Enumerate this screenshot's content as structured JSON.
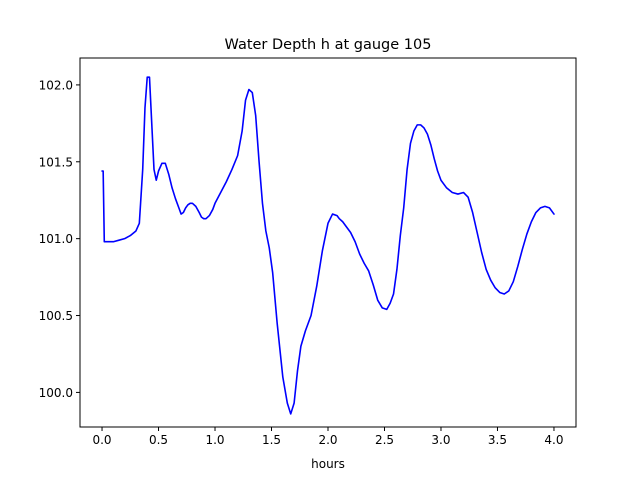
{
  "chart_data": {
    "type": "line",
    "title": "Water Depth h at gauge 105",
    "xlabel": "hours",
    "ylabel": "",
    "xlim": [
      -0.195,
      4.195
    ],
    "ylim": [
      99.775,
      102.175
    ],
    "xticks": [
      0.0,
      0.5,
      1.0,
      1.5,
      2.0,
      2.5,
      3.0,
      3.5,
      4.0
    ],
    "xtick_labels": [
      "0.0",
      "0.5",
      "1.0",
      "1.5",
      "2.0",
      "2.5",
      "3.0",
      "3.5",
      "4.0"
    ],
    "yticks": [
      100.0,
      100.5,
      101.0,
      101.5,
      102.0
    ],
    "ytick_labels": [
      "100.0",
      "100.5",
      "101.0",
      "101.5",
      "102.0"
    ],
    "grid": false,
    "legend": "none",
    "series": [
      {
        "color": "#0000ff",
        "x": [
          0.0,
          0.01,
          0.02,
          0.1,
          0.15,
          0.2,
          0.25,
          0.3,
          0.33,
          0.36,
          0.38,
          0.4,
          0.42,
          0.44,
          0.46,
          0.48,
          0.5,
          0.53,
          0.56,
          0.59,
          0.62,
          0.65,
          0.68,
          0.7,
          0.72,
          0.74,
          0.76,
          0.78,
          0.8,
          0.83,
          0.86,
          0.88,
          0.9,
          0.92,
          0.95,
          0.98,
          1.0,
          1.05,
          1.1,
          1.15,
          1.2,
          1.24,
          1.27,
          1.3,
          1.33,
          1.36,
          1.39,
          1.42,
          1.45,
          1.48,
          1.51,
          1.55,
          1.6,
          1.64,
          1.67,
          1.7,
          1.73,
          1.76,
          1.8,
          1.85,
          1.9,
          1.95,
          2.0,
          2.04,
          2.08,
          2.1,
          2.13,
          2.16,
          2.2,
          2.24,
          2.28,
          2.32,
          2.36,
          2.4,
          2.44,
          2.48,
          2.52,
          2.55,
          2.58,
          2.61,
          2.64,
          2.67,
          2.7,
          2.73,
          2.76,
          2.79,
          2.82,
          2.85,
          2.88,
          2.91,
          2.94,
          2.97,
          3.0,
          3.05,
          3.1,
          3.15,
          3.2,
          3.24,
          3.28,
          3.32,
          3.36,
          3.4,
          3.44,
          3.48,
          3.52,
          3.56,
          3.6,
          3.64,
          3.68,
          3.72,
          3.76,
          3.8,
          3.84,
          3.88,
          3.92,
          3.96,
          4.0
        ],
        "y": [
          101.44,
          101.44,
          100.98,
          100.98,
          100.99,
          101.0,
          101.02,
          101.05,
          101.1,
          101.45,
          101.85,
          102.05,
          102.05,
          101.75,
          101.45,
          101.38,
          101.44,
          101.49,
          101.49,
          101.42,
          101.33,
          101.26,
          101.2,
          101.16,
          101.17,
          101.2,
          101.22,
          101.23,
          101.23,
          101.21,
          101.17,
          101.14,
          101.13,
          101.13,
          101.15,
          101.19,
          101.23,
          101.3,
          101.37,
          101.45,
          101.54,
          101.7,
          101.9,
          101.97,
          101.95,
          101.8,
          101.5,
          101.23,
          101.05,
          100.94,
          100.78,
          100.45,
          100.1,
          99.93,
          99.86,
          99.93,
          100.14,
          100.3,
          100.4,
          100.5,
          100.69,
          100.92,
          101.1,
          101.16,
          101.15,
          101.13,
          101.11,
          101.08,
          101.04,
          100.98,
          100.9,
          100.84,
          100.79,
          100.7,
          100.6,
          100.55,
          100.54,
          100.58,
          100.64,
          100.8,
          101.02,
          101.2,
          101.45,
          101.62,
          101.7,
          101.74,
          101.74,
          101.72,
          101.68,
          101.61,
          101.52,
          101.44,
          101.38,
          101.33,
          101.3,
          101.29,
          101.3,
          101.27,
          101.17,
          101.04,
          100.91,
          100.8,
          100.73,
          100.68,
          100.65,
          100.64,
          100.66,
          100.72,
          100.82,
          100.93,
          101.03,
          101.11,
          101.17,
          101.2,
          101.21,
          101.2,
          101.16
        ]
      }
    ]
  }
}
